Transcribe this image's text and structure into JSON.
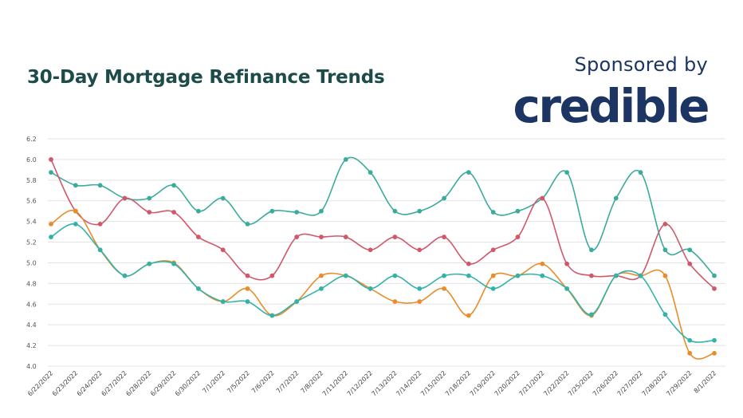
{
  "header": {
    "title": "30-Day Mortgage Refinance Trends",
    "sponsor_text": "Sponsored by",
    "brand": "credible"
  },
  "chart_data": {
    "type": "line",
    "title": "30-Day Mortgage Refinance Trends",
    "xlabel": "",
    "ylabel": "",
    "ylim": [
      4.0,
      6.2
    ],
    "yticks": [
      "6.2",
      "6.0",
      "5.8",
      "5.6",
      "5.4",
      "5.2",
      "5.0",
      "4.8",
      "4.6",
      "4.4",
      "4.2",
      "4.0"
    ],
    "grid": true,
    "legend": "none",
    "categories": [
      "6/22/2022",
      "6/23/2022",
      "6/24/2022",
      "6/27/2022",
      "6/28/2022",
      "6/29/2022",
      "6/30/2022",
      "7/1/2022",
      "7/5/2022",
      "7/6/2022",
      "7/7/2022",
      "7/8/2022",
      "7/11/2022",
      "7/12/2022",
      "7/13/2022",
      "7/14/2022",
      "7/15/2022",
      "7/18/2022",
      "7/19/2022",
      "7/20/2022",
      "7/21/2022",
      "7/22/2022",
      "7/25/2022",
      "7/26/2022",
      "7/27/2022",
      "7/28/2022",
      "7/29/2022",
      "8/1/2022"
    ],
    "series": [
      {
        "color": "#3aab9c",
        "values": [
          5.875,
          5.75,
          5.75,
          5.625,
          5.625,
          5.75,
          5.5,
          5.625,
          5.375,
          5.5,
          5.49,
          5.5,
          6.0,
          5.875,
          5.5,
          5.5,
          5.625,
          5.875,
          5.49,
          5.5,
          5.625,
          5.875,
          5.125,
          5.625,
          5.875,
          5.125,
          5.125,
          4.875
        ]
      },
      {
        "color": "#d0586a",
        "values": [
          6.0,
          5.5,
          5.375,
          5.625,
          5.49,
          5.49,
          5.25,
          5.125,
          4.875,
          4.875,
          5.25,
          5.25,
          5.25,
          5.125,
          5.25,
          5.125,
          5.25,
          4.99,
          5.125,
          5.25,
          5.625,
          4.99,
          4.875,
          4.875,
          4.875,
          5.375,
          4.99,
          4.75
        ]
      },
      {
        "color": "#e88c2c",
        "values": [
          5.375,
          5.5,
          5.125,
          4.875,
          4.99,
          5.0,
          4.75,
          4.625,
          4.75,
          4.49,
          4.625,
          4.875,
          4.875,
          4.75,
          4.625,
          4.625,
          4.75,
          4.49,
          4.875,
          4.875,
          4.99,
          4.75,
          4.49,
          4.875,
          4.875,
          4.875,
          4.125,
          4.125
        ]
      },
      {
        "color": "#32b3a8",
        "values": [
          5.25,
          5.375,
          5.125,
          4.875,
          4.99,
          4.99,
          4.75,
          4.625,
          4.625,
          4.49,
          4.625,
          4.75,
          4.875,
          4.75,
          4.875,
          4.75,
          4.875,
          4.875,
          4.75,
          4.875,
          4.875,
          4.75,
          4.5,
          4.875,
          4.875,
          4.5,
          4.25,
          4.25
        ]
      }
    ]
  }
}
